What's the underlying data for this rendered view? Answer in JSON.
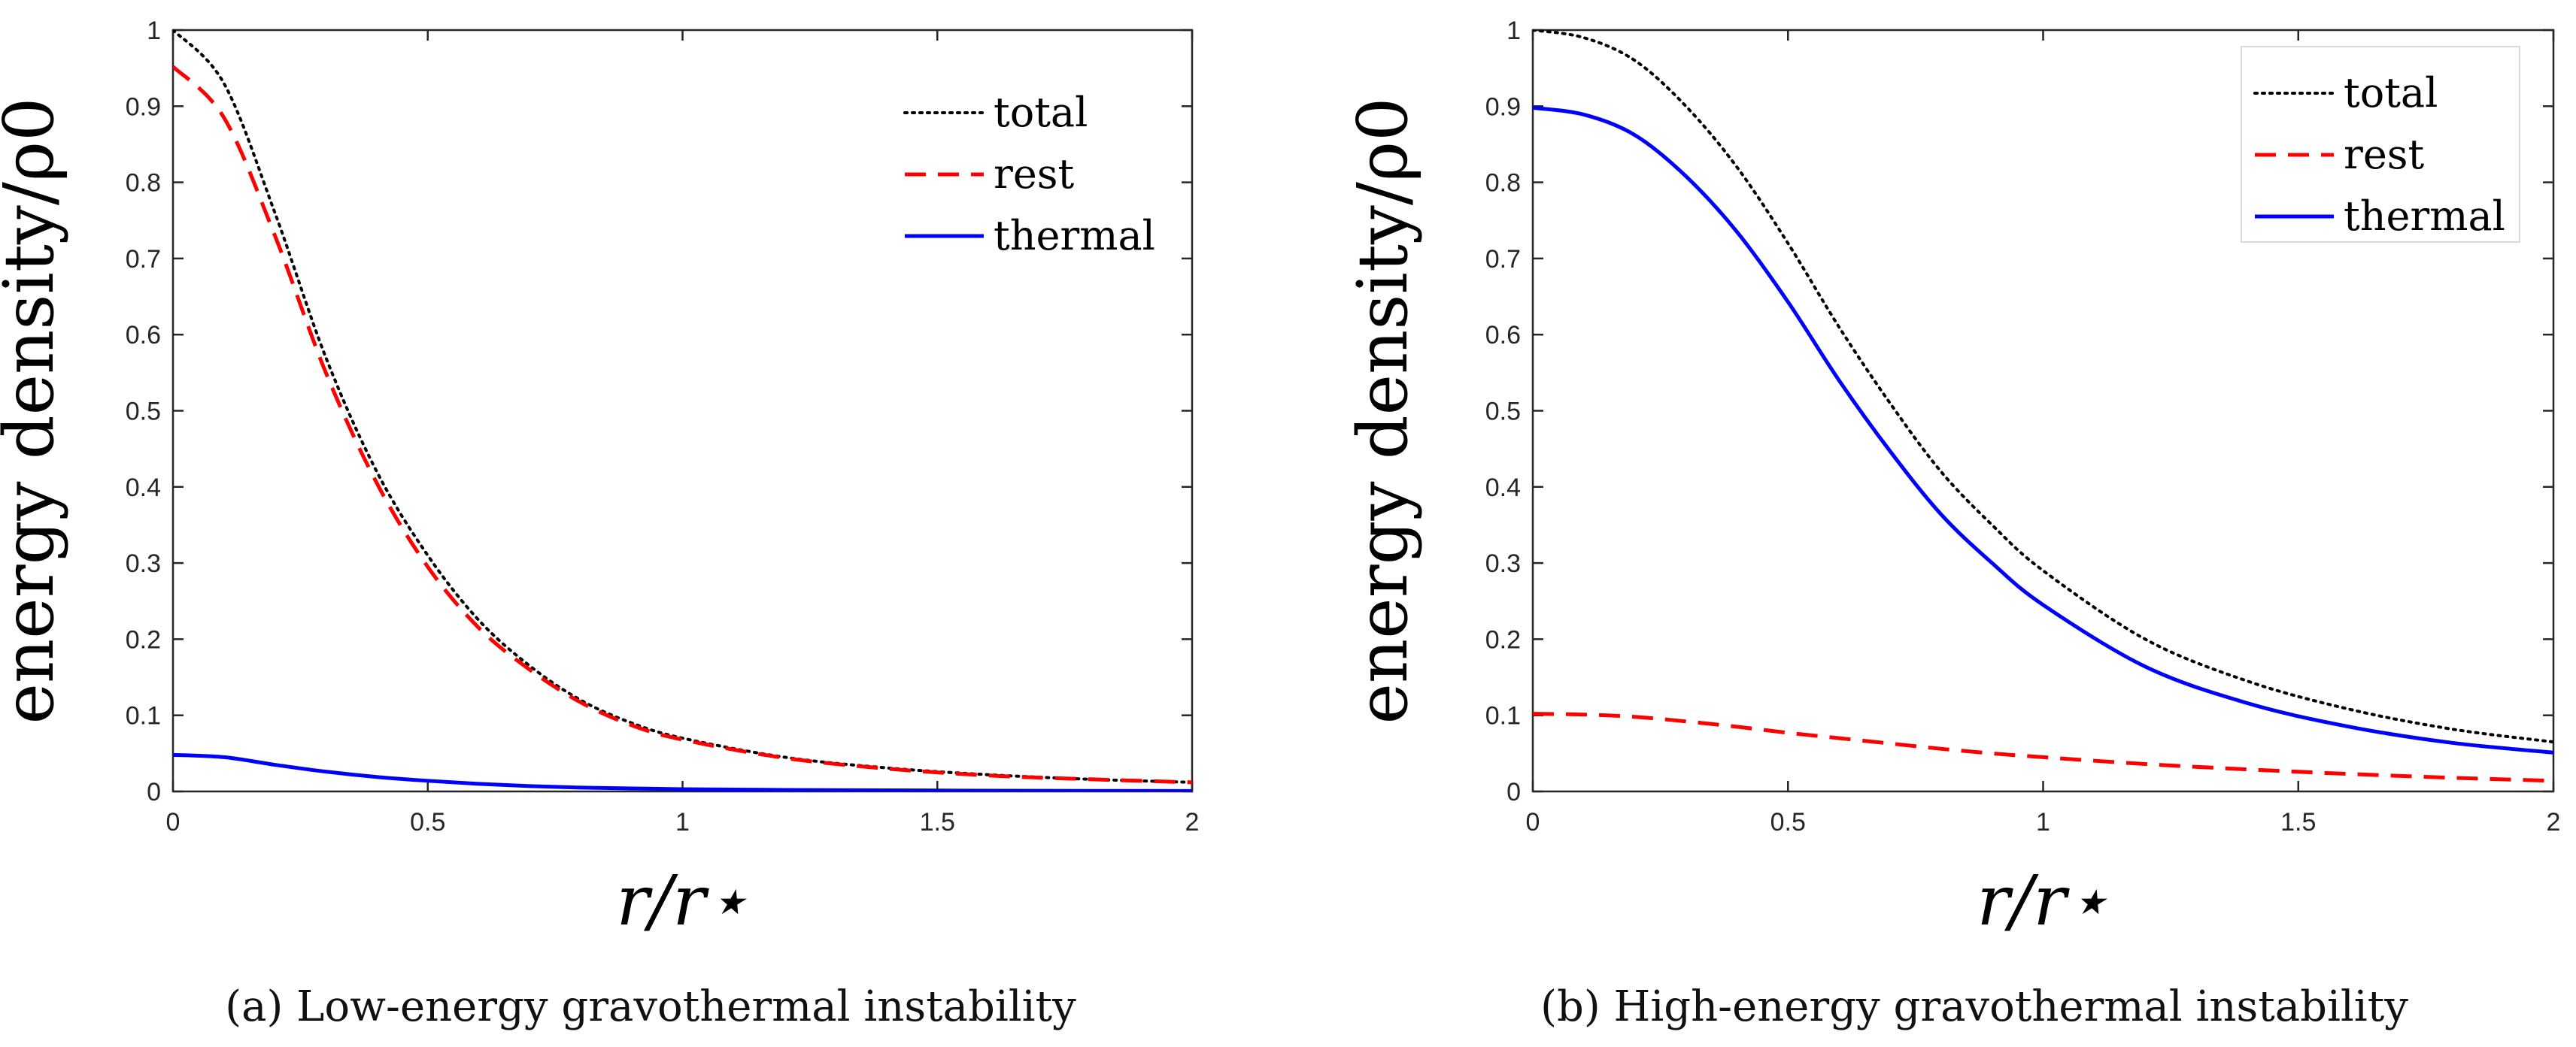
{
  "captions": [
    "(a)  Low-energy gravothermal instability",
    "(b)  High-energy gravothermal instability"
  ],
  "chart_data": [
    {
      "type": "line",
      "title": "",
      "xlabel": "r/r⋆",
      "ylabel": "energy density/ρ0",
      "xlim": [
        0,
        2
      ],
      "ylim": [
        0,
        1
      ],
      "xticks": [
        "0",
        "0.5",
        "1",
        "1.5",
        "2"
      ],
      "yticks": [
        "0",
        "0.1",
        "0.2",
        "0.3",
        "0.4",
        "0.5",
        "0.6",
        "0.7",
        "0.8",
        "0.9",
        "1"
      ],
      "grid": false,
      "legend_position": "top-right",
      "legend_boxed": false,
      "x": [
        0,
        0.1,
        0.2,
        0.3,
        0.4,
        0.5,
        0.6,
        0.7,
        0.8,
        0.9,
        1.0,
        1.2,
        1.4,
        1.6,
        1.8,
        2.0
      ],
      "series": [
        {
          "name": "total",
          "style": "dotted",
          "color": "#000000",
          "values": [
            1.0,
            0.93,
            0.76,
            0.57,
            0.42,
            0.31,
            0.225,
            0.165,
            0.12,
            0.09,
            0.07,
            0.045,
            0.031,
            0.022,
            0.016,
            0.012
          ]
        },
        {
          "name": "rest",
          "style": "dashed",
          "color": "#ff0000",
          "values": [
            0.952,
            0.885,
            0.73,
            0.55,
            0.405,
            0.295,
            0.215,
            0.16,
            0.117,
            0.087,
            0.068,
            0.044,
            0.03,
            0.021,
            0.016,
            0.012
          ]
        },
        {
          "name": "thermal",
          "style": "solid",
          "color": "#0000ff",
          "values": [
            0.048,
            0.045,
            0.035,
            0.026,
            0.019,
            0.014,
            0.01,
            0.007,
            0.005,
            0.004,
            0.003,
            0.002,
            0.0015,
            0.001,
            0.0008,
            0.0006
          ]
        }
      ]
    },
    {
      "type": "line",
      "title": "",
      "xlabel": "r/r⋆",
      "ylabel": "energy density/ρ0",
      "xlim": [
        0,
        2
      ],
      "ylim": [
        0,
        1
      ],
      "xticks": [
        "0",
        "0.5",
        "1",
        "1.5",
        "2"
      ],
      "yticks": [
        "0",
        "0.1",
        "0.2",
        "0.3",
        "0.4",
        "0.5",
        "0.6",
        "0.7",
        "0.8",
        "0.9",
        "1"
      ],
      "grid": false,
      "legend_position": "top-right",
      "legend_boxed": true,
      "x": [
        0,
        0.1,
        0.2,
        0.3,
        0.4,
        0.5,
        0.6,
        0.7,
        0.8,
        0.9,
        1.0,
        1.2,
        1.4,
        1.6,
        1.8,
        2.0
      ],
      "series": [
        {
          "name": "total",
          "style": "dotted",
          "color": "#000000",
          "values": [
            1.0,
            0.99,
            0.96,
            0.9,
            0.82,
            0.72,
            0.61,
            0.51,
            0.42,
            0.35,
            0.29,
            0.2,
            0.145,
            0.108,
            0.082,
            0.065
          ]
        },
        {
          "name": "rest",
          "style": "dashed",
          "color": "#ff0000",
          "values": [
            0.102,
            0.101,
            0.098,
            0.092,
            0.085,
            0.077,
            0.07,
            0.063,
            0.056,
            0.05,
            0.045,
            0.036,
            0.029,
            0.023,
            0.018,
            0.014
          ]
        },
        {
          "name": "thermal",
          "style": "solid",
          "color": "#0000ff",
          "values": [
            0.898,
            0.889,
            0.862,
            0.808,
            0.735,
            0.643,
            0.54,
            0.447,
            0.364,
            0.3,
            0.245,
            0.164,
            0.116,
            0.085,
            0.064,
            0.051
          ]
        }
      ]
    }
  ]
}
